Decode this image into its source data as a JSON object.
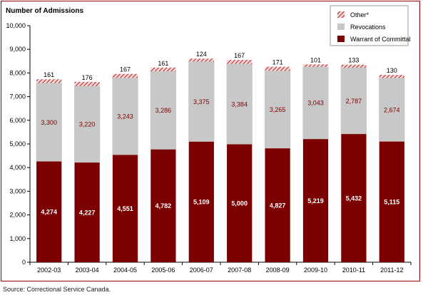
{
  "chart_data": {
    "type": "bar",
    "stacked": true,
    "title": "Number of Admissions",
    "categories": [
      "2002-03",
      "2003-04",
      "2004-05",
      "2005-06",
      "2006-07",
      "2007-08",
      "2008-09",
      "2009-10",
      "2010-11",
      "2011-12"
    ],
    "series": [
      {
        "name": "Warrant of Committal",
        "color": "#7b0000",
        "values": [
          4274,
          4227,
          4551,
          4782,
          5109,
          5000,
          4827,
          5219,
          5432,
          5115
        ]
      },
      {
        "name": "Revocations",
        "color": "#c8c8c8",
        "values": [
          3300,
          3220,
          3243,
          3286,
          3375,
          3384,
          3265,
          3043,
          2787,
          2674
        ]
      },
      {
        "name": "Other*",
        "color": "#b22222",
        "pattern": "hatch",
        "values": [
          161,
          176,
          167,
          161,
          124,
          167,
          171,
          101,
          133,
          130
        ]
      }
    ],
    "legend_order": [
      "Other*",
      "Revocations",
      "Warrant of Committal"
    ],
    "legend_position": "top-right",
    "ylim": [
      0,
      10000
    ],
    "yticks": [
      0,
      1000,
      2000,
      3000,
      4000,
      5000,
      6000,
      7000,
      8000,
      9000,
      10000
    ],
    "xlabel": "",
    "ylabel": ""
  },
  "source": "Source: Correctional Service Canada."
}
